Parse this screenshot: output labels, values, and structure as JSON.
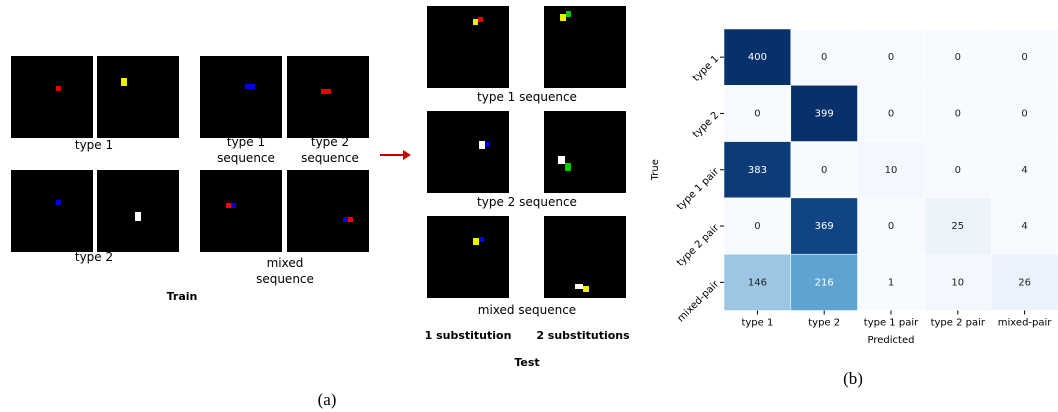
{
  "figure_a": {
    "train": {
      "type1": "type 1",
      "type2": "type 2",
      "type1_sequence": "type 1 sequence",
      "type2_sequence": "type 2 sequence",
      "mixed_sequence": "mixed sequence",
      "title": "Train"
    },
    "test": {
      "type1_sequence": "type 1 sequence",
      "type2_sequence": "type 2 sequence",
      "mixed_sequence": "mixed sequence",
      "one_sub": "1 substitution",
      "two_sub": "2 substitutions",
      "title": "Test"
    },
    "caption": "(a)"
  },
  "caption_b": "(b)",
  "chart_data": {
    "type": "heatmap",
    "x_label": "Predicted",
    "y_label": "True",
    "colormap": "Blues",
    "x_categories": [
      "type 1",
      "type 2",
      "type 1 pair",
      "type 2 pair",
      "mixed-pair"
    ],
    "y_categories": [
      "type 1",
      "type 2",
      "type 1 pair",
      "type 2 pair",
      "mixed-pair"
    ],
    "values": [
      [
        400,
        0,
        0,
        0,
        0
      ],
      [
        0,
        399,
        0,
        0,
        0
      ],
      [
        383,
        0,
        10,
        0,
        4
      ],
      [
        0,
        369,
        0,
        25,
        4
      ],
      [
        146,
        216,
        1,
        10,
        26
      ]
    ]
  }
}
